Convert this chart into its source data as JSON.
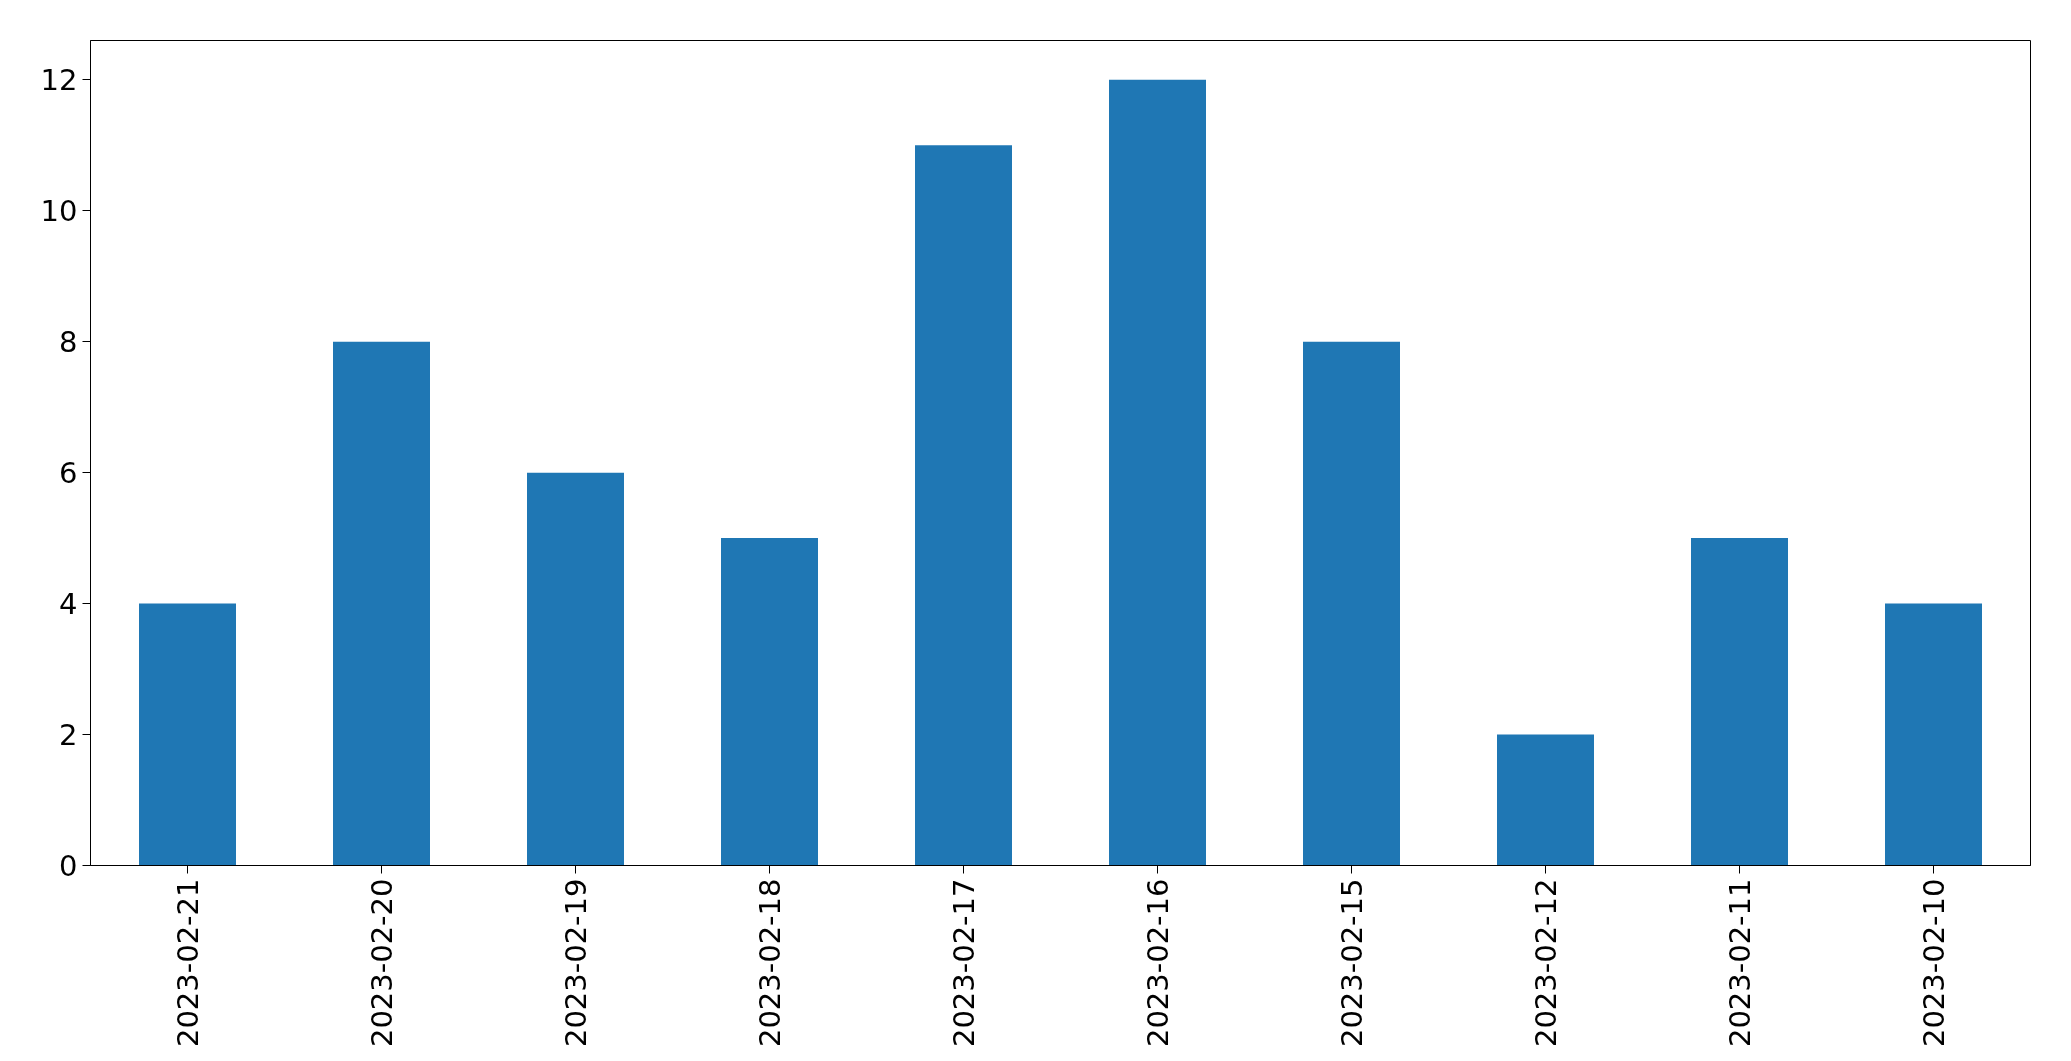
{
  "chart_data": {
    "type": "bar",
    "categories": [
      "2023-02-21",
      "2023-02-20",
      "2023-02-19",
      "2023-02-18",
      "2023-02-17",
      "2023-02-16",
      "2023-02-15",
      "2023-02-12",
      "2023-02-11",
      "2023-02-10"
    ],
    "values": [
      4,
      8,
      6,
      5,
      11,
      12,
      8,
      2,
      5,
      4
    ],
    "color": "#1f77b4",
    "ylim": [
      0,
      12.6
    ],
    "yticks": [
      0,
      2,
      4,
      6,
      8,
      10,
      12
    ],
    "grid": false
  }
}
